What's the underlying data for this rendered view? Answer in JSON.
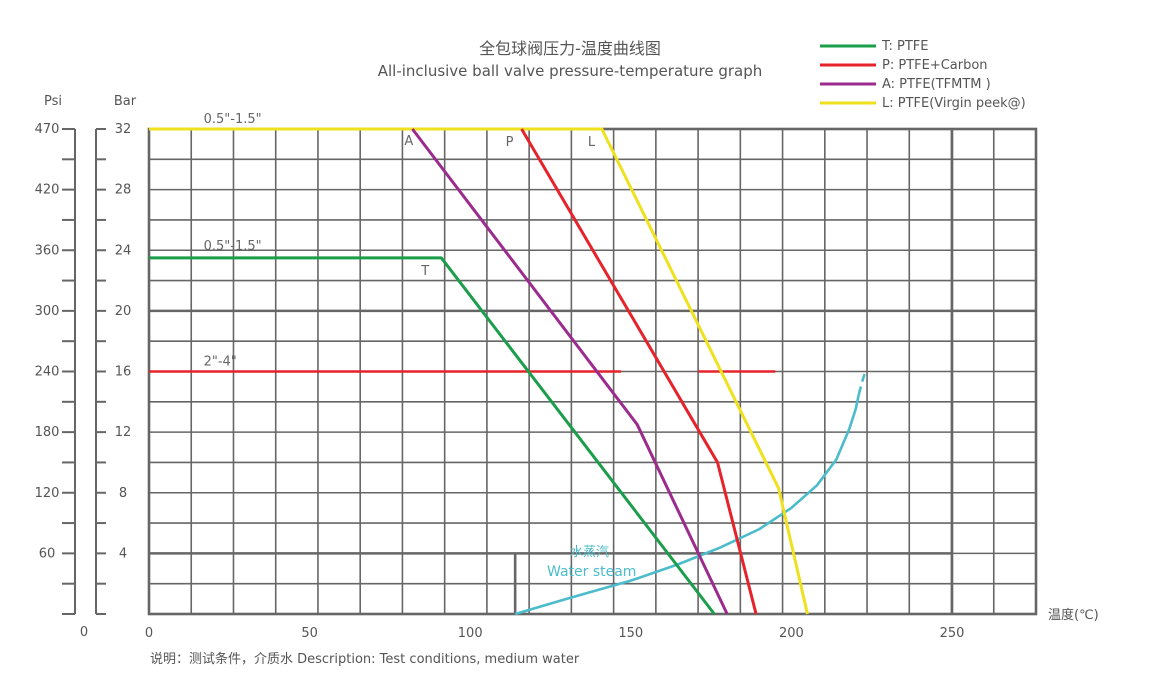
{
  "chart_data": {
    "type": "line",
    "title": "全包球阀压力-温度曲线图",
    "subtitle": "All-inclusive ball valve pressure-temperature graph",
    "xlabel": "温度(℃)",
    "ylabel_left": "Psi",
    "ylabel_right": "Bar",
    "xlim": [
      0,
      250
    ],
    "ylim": [
      0,
      32
    ],
    "x_ticks": [
      {
        "value": 0,
        "label": "0"
      },
      {
        "value": 50,
        "label": "50"
      },
      {
        "value": 100,
        "label": "100"
      },
      {
        "value": 150,
        "label": "150"
      },
      {
        "value": 200,
        "label": "200"
      },
      {
        "value": 250,
        "label": "250"
      }
    ],
    "psi_ticks": [
      {
        "value": 32,
        "label": "470"
      },
      {
        "value": 28,
        "label": "420"
      },
      {
        "value": 24,
        "label": "360"
      },
      {
        "value": 20,
        "label": "300"
      },
      {
        "value": 16,
        "label": "240"
      },
      {
        "value": 12,
        "label": "180"
      },
      {
        "value": 8,
        "label": "120"
      },
      {
        "value": 4,
        "label": "60"
      },
      {
        "value": 0,
        "label": "0"
      }
    ],
    "bar_ticks": [
      {
        "value": 32,
        "label": "32"
      },
      {
        "value": 28,
        "label": "28"
      },
      {
        "value": 24,
        "label": "24"
      },
      {
        "value": 20,
        "label": "20"
      },
      {
        "value": 16,
        "label": "16"
      },
      {
        "value": 12,
        "label": "12"
      },
      {
        "value": 8,
        "label": "8"
      },
      {
        "value": 4,
        "label": "4"
      }
    ],
    "grid": true,
    "legend_position": "top-right",
    "series": [
      {
        "name": "T: PTFE",
        "color": "#1a9e4a",
        "x": [
          0,
          91,
          176
        ],
        "y": [
          23.5,
          23.5,
          0
        ]
      },
      {
        "name": "P: PTFE+Carbon",
        "color": "#e6222a",
        "x": [
          116,
          177,
          189
        ],
        "y": [
          32,
          10,
          0
        ]
      },
      {
        "name": "A: PTFE(TFMTM )",
        "color": "#9b2b8d",
        "x": [
          82,
          152,
          180
        ],
        "y": [
          32,
          12.5,
          0
        ]
      },
      {
        "name": "L: PTFE(Virgin peek@)",
        "color": "#f0e11e",
        "x": [
          0,
          141,
          196,
          205
        ],
        "y": [
          32,
          32,
          8.3,
          0
        ]
      }
    ],
    "extra_lines": [
      {
        "label": "2\"-4\"",
        "color": "#e6222a",
        "segments": [
          [
            [
              0,
              16
            ],
            [
              147,
              16
            ]
          ],
          [
            [
              171,
              16
            ],
            [
              195,
              16
            ]
          ]
        ]
      }
    ],
    "steam": {
      "label_cn": "水蒸汽",
      "label_en": "Water steam",
      "color": "#4bbccb",
      "x": [
        114,
        130,
        150,
        165,
        178,
        190,
        200,
        208,
        214,
        218,
        220,
        221
      ],
      "y": [
        0,
        1,
        2.2,
        3.3,
        4.4,
        5.6,
        7,
        8.5,
        10.2,
        12.2,
        13.5,
        14.5
      ],
      "dashed_x": [
        221,
        222,
        223
      ],
      "dashed_y": [
        14.5,
        15.3,
        16
      ]
    },
    "annotations": [
      {
        "text": "0.5\"-1.5\"",
        "x": 17,
        "y": 32
      },
      {
        "text": "0.5\"-1.5\"",
        "x": 17,
        "y": 23.5
      },
      {
        "text": "2\"-4\"",
        "x": 17,
        "y": 16
      },
      {
        "text": "A",
        "x": 82,
        "y": 32
      },
      {
        "text": "P",
        "x": 116,
        "y": 32
      },
      {
        "text": "L",
        "x": 141,
        "y": 32
      },
      {
        "text": "T",
        "x": 91,
        "y": 23.5
      }
    ]
  },
  "footnote": "说明：测试条件，介质水   Description: Test conditions, medium water"
}
